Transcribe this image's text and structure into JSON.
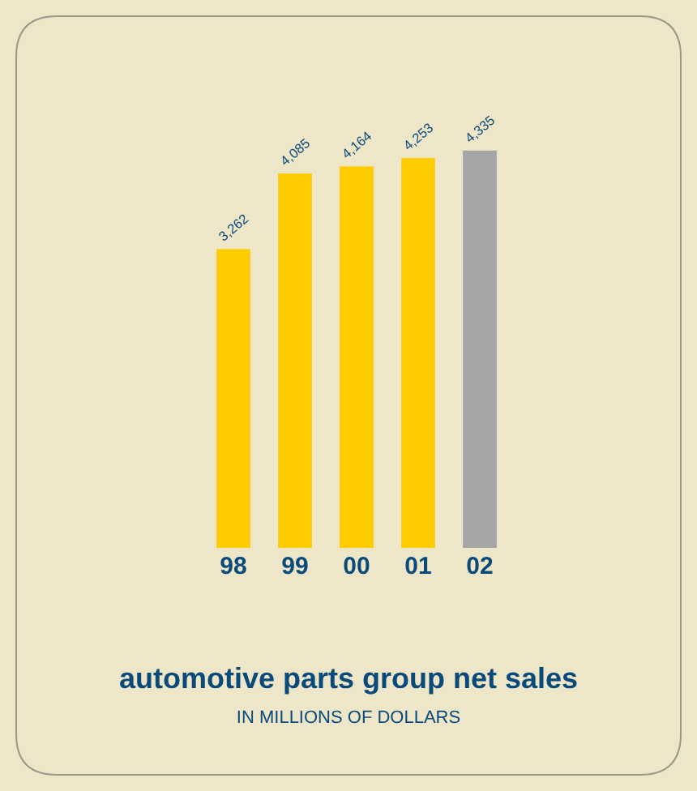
{
  "chart_data": {
    "type": "bar",
    "title": "automotive parts group net sales",
    "subtitle": "IN MILLIONS OF DOLLARS",
    "categories": [
      "98",
      "99",
      "00",
      "01",
      "02"
    ],
    "values": [
      3262,
      4085,
      4164,
      4253,
      4335
    ],
    "colors": [
      "#ffcc00",
      "#ffcc00",
      "#ffcc00",
      "#ffcc00",
      "#a6a6a6"
    ],
    "value_labels": [
      "3,262",
      "4,085",
      "4,164",
      "4,253",
      "4,335"
    ],
    "grid": false
  }
}
